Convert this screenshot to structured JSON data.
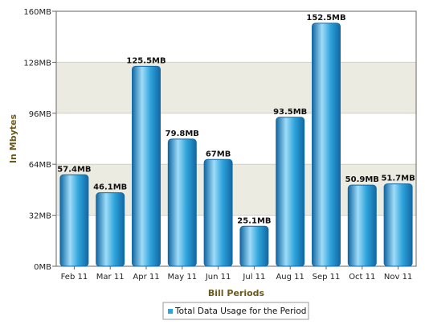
{
  "chart_data": {
    "type": "bar",
    "title": "",
    "xlabel": "Bill Periods",
    "ylabel": "In Mbytes",
    "categories": [
      "Feb 11",
      "Mar 11",
      "Apr 11",
      "May 11",
      "Jun 11",
      "Jul 11",
      "Aug 11",
      "Sep 11",
      "Oct 11",
      "Nov 11"
    ],
    "series": [
      {
        "name": "Total Data Usage for the Period",
        "values": [
          57.4,
          46.1,
          125.5,
          79.8,
          67,
          25.1,
          93.5,
          152.5,
          50.9,
          51.7
        ],
        "value_labels": [
          "57.4MB",
          "46.1MB",
          "125.5MB",
          "79.8MB",
          "67MB",
          "25.1MB",
          "93.5MB",
          "152.5MB",
          "50.9MB",
          "51.7MB"
        ]
      }
    ],
    "ylim": [
      0,
      160
    ],
    "yticks": [
      0,
      32,
      64,
      96,
      128,
      160
    ],
    "ytick_labels": [
      "0MB",
      "32MB",
      "64MB",
      "96MB",
      "128MB",
      "160MB"
    ],
    "grid": true,
    "legend": "bottom-center",
    "colors": {
      "bar": "#2fa4dc",
      "bar_light": "#9fdcf8",
      "bar_dark": "#1268a3",
      "band": "#ecebe2",
      "axis_title": "#6b5a1e"
    }
  }
}
